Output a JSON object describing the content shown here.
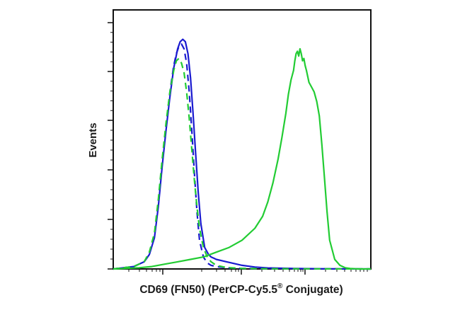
{
  "chart_data": {
    "type": "line",
    "title": "",
    "xlabel_main": "CD69 (FN50) (PerCP-Cy5.5",
    "xlabel_sup": "®",
    "xlabel_tail": " Conjugate)",
    "ylabel": "Events",
    "xlim": [
      0,
      100
    ],
    "ylim": [
      0,
      100
    ],
    "grid": false,
    "legend": "none",
    "x_scale": "log-like (flow cytometry, unlabeled)",
    "series": [
      {
        "color": "#1a1ad0",
        "dash": "solid",
        "x": [
          0,
          4,
          8,
          12,
          14,
          16,
          17.5,
          19,
          20.5,
          22,
          23.5,
          25,
          26,
          27,
          28,
          29,
          30,
          31,
          32,
          33,
          34,
          35.5,
          37,
          38,
          39,
          40,
          42,
          44,
          46,
          50,
          55,
          60,
          70,
          80,
          100
        ],
        "y": [
          0,
          0.5,
          1,
          3,
          6,
          13,
          26,
          43,
          58,
          72,
          84,
          92,
          95,
          96,
          95,
          90,
          80,
          65,
          48,
          32,
          19,
          9,
          6,
          5,
          4.5,
          4,
          3.5,
          3,
          2.5,
          1.5,
          0.8,
          0.4,
          0.2,
          0.1,
          0
        ]
      },
      {
        "color": "#1a1ad0",
        "dash": "dashed",
        "x": [
          0,
          4,
          8,
          12,
          14,
          16,
          17.5,
          19,
          20.5,
          22,
          23.5,
          24.5,
          25.5,
          26.5,
          27.5,
          28.5,
          29.5,
          30.5,
          31.5,
          32.5,
          33.5,
          35,
          36.5,
          38,
          40,
          44,
          50,
          60,
          100
        ],
        "y": [
          0,
          0.5,
          1,
          3,
          6,
          14,
          28,
          45,
          60,
          74,
          85,
          90,
          93,
          94,
          92,
          86,
          74,
          58,
          40,
          24,
          12,
          5,
          2.5,
          1.5,
          1,
          0.5,
          0.2,
          0.1,
          0
        ]
      },
      {
        "color": "#22cc33",
        "dash": "dashed",
        "x": [
          0,
          4,
          8,
          12,
          14,
          16,
          17.5,
          19,
          20.5,
          22,
          23.5,
          24.5,
          25.5,
          26.5,
          27.5,
          28.5,
          29.5,
          30.5,
          31.5,
          32.5,
          33.5,
          35,
          36.5,
          38,
          40,
          44,
          50,
          60,
          100
        ],
        "y": [
          0,
          0.5,
          1,
          3,
          7,
          15,
          29,
          46,
          61,
          74,
          83,
          87,
          88,
          86,
          82,
          74,
          63,
          50,
          37,
          26,
          17,
          9,
          5,
          3,
          1.5,
          0.6,
          0.2,
          0.1,
          0
        ]
      },
      {
        "color": "#22cc33",
        "dash": "solid",
        "x": [
          0,
          10,
          15,
          20,
          25,
          30,
          35,
          40,
          45,
          50,
          55,
          58,
          60,
          62,
          64,
          65.5,
          67,
          68,
          69,
          70,
          70.5,
          71,
          71.5,
          72,
          72.5,
          73,
          73.5,
          74,
          74.5,
          75,
          76,
          77,
          78,
          79,
          80,
          81,
          82,
          83,
          84,
          86,
          88,
          90,
          92,
          95,
          100
        ],
        "y": [
          0,
          0.5,
          1,
          2,
          3,
          4,
          5,
          7,
          9,
          12,
          17,
          22,
          28,
          36,
          46,
          55,
          65,
          73,
          79,
          83,
          87,
          90,
          91,
          89,
          92,
          90,
          87,
          88,
          85,
          83,
          78,
          76,
          74,
          70,
          64,
          52,
          38,
          24,
          12,
          4,
          1.5,
          0.5,
          0.2,
          0,
          0
        ]
      }
    ]
  }
}
